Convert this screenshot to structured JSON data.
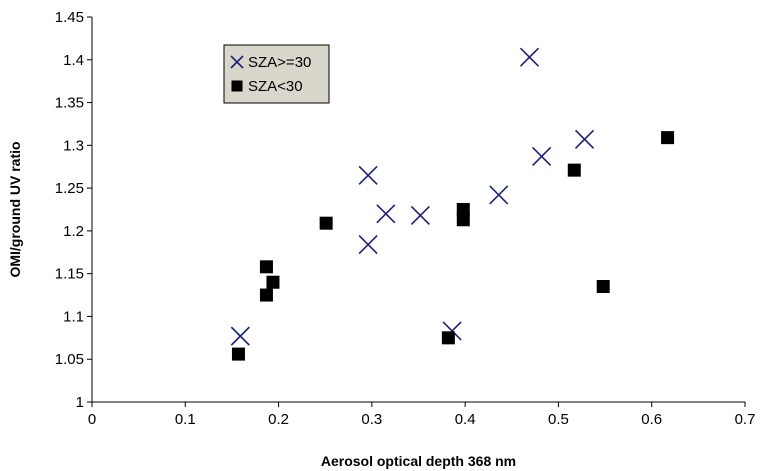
{
  "chart_data": {
    "type": "scatter",
    "title": "",
    "xlabel": "Aerosol optical depth 368 nm",
    "ylabel": "OMI/ground UV ratio",
    "xlim": [
      0,
      0.7
    ],
    "ylim": [
      1,
      1.45
    ],
    "x_ticks": [
      {
        "value": 0,
        "label": "0"
      },
      {
        "value": 0.1,
        "label": "0.1"
      },
      {
        "value": 0.2,
        "label": "0.2"
      },
      {
        "value": 0.3,
        "label": "0.3"
      },
      {
        "value": 0.4,
        "label": "0.4"
      },
      {
        "value": 0.5,
        "label": "0.5"
      },
      {
        "value": 0.6,
        "label": "0.6"
      },
      {
        "value": 0.7,
        "label": "0.7"
      }
    ],
    "y_ticks": [
      {
        "value": 1,
        "label": "1"
      },
      {
        "value": 1.05,
        "label": "1.05"
      },
      {
        "value": 1.1,
        "label": "1.1"
      },
      {
        "value": 1.15,
        "label": "1.15"
      },
      {
        "value": 1.2,
        "label": "1.2"
      },
      {
        "value": 1.25,
        "label": "1.25"
      },
      {
        "value": 1.3,
        "label": "1.3"
      },
      {
        "value": 1.35,
        "label": "1.35"
      },
      {
        "value": 1.4,
        "label": "1.4"
      },
      {
        "value": 1.45,
        "label": "1.45"
      }
    ],
    "grid": false,
    "legend_position": "top-left inside plot",
    "legend_background": "#d9d6cc",
    "series": [
      {
        "name": "SZA>=30",
        "marker": "x",
        "color": "#1f1f7a",
        "points": [
          {
            "x": 0.159,
            "y": 1.077
          },
          {
            "x": 0.296,
            "y": 1.265
          },
          {
            "x": 0.296,
            "y": 1.184
          },
          {
            "x": 0.315,
            "y": 1.22
          },
          {
            "x": 0.352,
            "y": 1.218
          },
          {
            "x": 0.386,
            "y": 1.083
          },
          {
            "x": 0.436,
            "y": 1.242
          },
          {
            "x": 0.469,
            "y": 1.403
          },
          {
            "x": 0.482,
            "y": 1.287
          },
          {
            "x": 0.528,
            "y": 1.307
          }
        ]
      },
      {
        "name": "SZA<30",
        "marker": "square",
        "color": "#000000",
        "points": [
          {
            "x": 0.157,
            "y": 1.056
          },
          {
            "x": 0.187,
            "y": 1.158
          },
          {
            "x": 0.187,
            "y": 1.125
          },
          {
            "x": 0.194,
            "y": 1.14
          },
          {
            "x": 0.251,
            "y": 1.209
          },
          {
            "x": 0.382,
            "y": 1.075
          },
          {
            "x": 0.398,
            "y": 1.225
          },
          {
            "x": 0.398,
            "y": 1.213
          },
          {
            "x": 0.517,
            "y": 1.271
          },
          {
            "x": 0.548,
            "y": 1.135
          },
          {
            "x": 0.617,
            "y": 1.309
          }
        ]
      }
    ]
  }
}
